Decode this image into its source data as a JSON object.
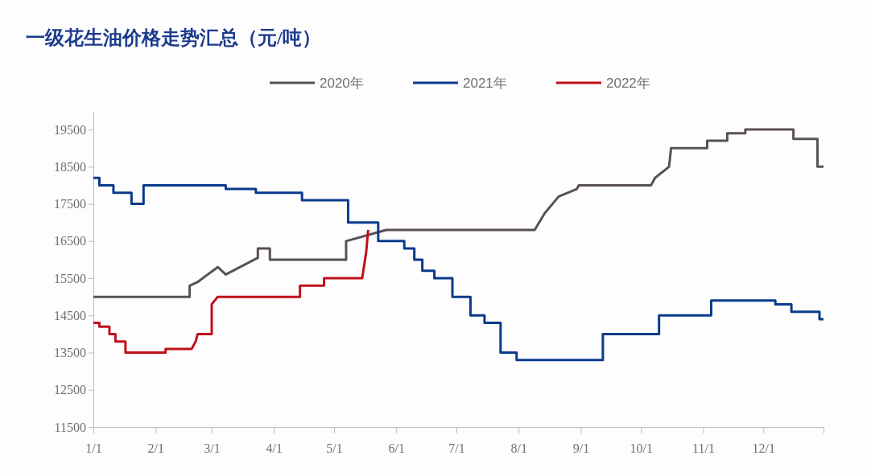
{
  "chart_data": {
    "type": "line",
    "title": "一级花生油价格走势汇总（元/吨）",
    "legend": "top",
    "grid": false,
    "marker": "none",
    "line_style": "solid",
    "xlim": [
      "--01-01",
      "--12-31"
    ],
    "xticks": [
      {
        "value": "--01-01",
        "label": "1/1"
      },
      {
        "value": "--02-01",
        "label": "2/1"
      },
      {
        "value": "--03-01",
        "label": "3/1"
      },
      {
        "value": "--04-01",
        "label": "4/1"
      },
      {
        "value": "--05-01",
        "label": "5/1"
      },
      {
        "value": "--06-01",
        "label": "6/1"
      },
      {
        "value": "--07-01",
        "label": "7/1"
      },
      {
        "value": "--08-01",
        "label": "8/1"
      },
      {
        "value": "--09-01",
        "label": "9/1"
      },
      {
        "value": "--10-01",
        "label": "10/1"
      },
      {
        "value": "--11-01",
        "label": "11/1"
      },
      {
        "value": "--12-01",
        "label": "12/1"
      },
      {
        "value": "--12-31",
        "label": null
      }
    ],
    "ylim": [
      11500,
      20000
    ],
    "yticks": [
      11500,
      12500,
      13500,
      14500,
      15500,
      16500,
      17500,
      18500,
      19500
    ],
    "series": [
      {
        "name": "2020年",
        "color": "#5a5059",
        "x": [
          "--01-01",
          "--02-18",
          "--02-18",
          "--02-22",
          "--03-04",
          "--03-08",
          "--03-24",
          "--03-24",
          "--03-30",
          "--03-30",
          "--05-07",
          "--05-07",
          "--05-27",
          "--08-09",
          "--08-14",
          "--08-21",
          "--08-30",
          "--08-31",
          "--10-06",
          "--10-08",
          "--10-15",
          "--10-16",
          "--11-03",
          "--11-03",
          "--11-13",
          "--11-13",
          "--11-22",
          "--11-22",
          "--12-16",
          "--12-16",
          "--12-28",
          "--12-28",
          "--12-31"
        ],
        "values": [
          15000,
          15000,
          15300,
          15400,
          15800,
          15600,
          16050,
          16300,
          16300,
          16000,
          16000,
          16500,
          16800,
          16800,
          17250,
          17700,
          17900,
          18000,
          18000,
          18200,
          18500,
          19000,
          19000,
          19200,
          19200,
          19400,
          19400,
          19500,
          19500,
          19250,
          19250,
          18500,
          18500
        ]
      },
      {
        "name": "2021年",
        "color": "#0a3a8c",
        "x": [
          "--01-01",
          "--01-04",
          "--01-04",
          "--01-11",
          "--01-11",
          "--01-20",
          "--01-20",
          "--01-26",
          "--01-26",
          "--03-08",
          "--03-08",
          "--03-23",
          "--03-23",
          "--04-15",
          "--04-15",
          "--05-08",
          "--05-08",
          "--05-23",
          "--05-23",
          "--06-05",
          "--06-05",
          "--06-10",
          "--06-10",
          "--06-14",
          "--06-14",
          "--06-20",
          "--06-20",
          "--06-29",
          "--06-29",
          "--07-08",
          "--07-08",
          "--07-15",
          "--07-15",
          "--07-23",
          "--07-23",
          "--07-31",
          "--07-31",
          "--09-12",
          "--09-12",
          "--10-10",
          "--10-10",
          "--11-05",
          "--11-05",
          "--12-07",
          "--12-07",
          "--12-15",
          "--12-15",
          "--12-29",
          "--12-29",
          "--12-31"
        ],
        "values": [
          18200,
          18200,
          18000,
          18000,
          17800,
          17800,
          17500,
          17500,
          18000,
          18000,
          17900,
          17900,
          17800,
          17800,
          17600,
          17600,
          17000,
          17000,
          16500,
          16500,
          16300,
          16300,
          16000,
          16000,
          15700,
          15700,
          15500,
          15500,
          15000,
          15000,
          14500,
          14500,
          14300,
          14300,
          13500,
          13500,
          13300,
          13300,
          14000,
          14000,
          14500,
          14500,
          14900,
          14900,
          14800,
          14800,
          14600,
          14600,
          14400,
          14400
        ]
      },
      {
        "name": "2022年",
        "color": "#c0101a",
        "x": [
          "--01-01",
          "--01-04",
          "--01-04",
          "--01-09",
          "--01-09",
          "--01-12",
          "--01-12",
          "--01-17",
          "--01-17",
          "--02-06",
          "--02-06",
          "--02-19",
          "--02-21",
          "--02-22",
          "--03-01",
          "--03-01",
          "--03-04",
          "--04-14",
          "--04-14",
          "--04-26",
          "--04-26",
          "--05-15",
          "--05-17",
          "--05-18"
        ],
        "values": [
          14300,
          14300,
          14200,
          14200,
          14000,
          14000,
          13800,
          13800,
          13500,
          13500,
          13600,
          13600,
          13800,
          14000,
          14000,
          14800,
          15000,
          15000,
          15300,
          15300,
          15500,
          15500,
          16200,
          16800
        ]
      }
    ]
  }
}
